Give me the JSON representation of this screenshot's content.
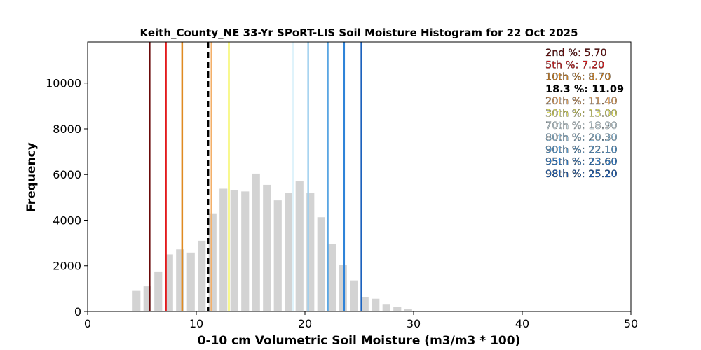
{
  "chart_data": {
    "type": "bar",
    "title": "Keith_County_NE 33-Yr SPoRT-LIS Soil Moisture Histogram for 22 Oct 2025",
    "xlabel": "0-10 cm Volumetric Soil Moisture (m3/m3 * 100)",
    "ylabel": "Frequency",
    "xlim": [
      0,
      50
    ],
    "ylim": [
      0,
      11800
    ],
    "xticks": [
      0,
      10,
      20,
      30,
      40,
      50
    ],
    "yticks": [
      0,
      2000,
      4000,
      6000,
      8000,
      10000
    ],
    "grid": false,
    "bin_width": 1,
    "bars": [
      {
        "x": 3.5,
        "y": 30
      },
      {
        "x": 4.5,
        "y": 900
      },
      {
        "x": 5.5,
        "y": 1100
      },
      {
        "x": 6.5,
        "y": 1750
      },
      {
        "x": 7.5,
        "y": 2500
      },
      {
        "x": 8.5,
        "y": 2720
      },
      {
        "x": 9.5,
        "y": 2580
      },
      {
        "x": 10.5,
        "y": 3100
      },
      {
        "x": 11.5,
        "y": 4300
      },
      {
        "x": 12.5,
        "y": 5380
      },
      {
        "x": 13.5,
        "y": 5320
      },
      {
        "x": 14.5,
        "y": 5260
      },
      {
        "x": 15.5,
        "y": 6040
      },
      {
        "x": 16.5,
        "y": 5550
      },
      {
        "x": 17.5,
        "y": 4870
      },
      {
        "x": 18.5,
        "y": 5180
      },
      {
        "x": 19.5,
        "y": 5700
      },
      {
        "x": 20.5,
        "y": 5200
      },
      {
        "x": 21.5,
        "y": 4130
      },
      {
        "x": 22.5,
        "y": 2950
      },
      {
        "x": 23.5,
        "y": 2040
      },
      {
        "x": 24.5,
        "y": 1360
      },
      {
        "x": 25.5,
        "y": 620
      },
      {
        "x": 26.5,
        "y": 560
      },
      {
        "x": 27.5,
        "y": 300
      },
      {
        "x": 28.5,
        "y": 200
      },
      {
        "x": 29.5,
        "y": 120
      }
    ],
    "bar_color": "#d3d3d3",
    "percentile_lines": [
      {
        "label": "2nd %",
        "value_text": "5.70",
        "x": 5.7,
        "color": "#6b0a0a",
        "dashed": false,
        "bold": false
      },
      {
        "label": "5th %",
        "value_text": "7.20",
        "x": 7.2,
        "color": "#e31a1c",
        "dashed": false,
        "bold": false
      },
      {
        "label": "10th %",
        "value_text": "8.70",
        "x": 8.7,
        "color": "#e08a22",
        "dashed": false,
        "bold": false
      },
      {
        "label": "18.3 %",
        "value_text": "11.09",
        "x": 11.09,
        "color": "#000000",
        "dashed": true,
        "bold": true
      },
      {
        "label": "20th %",
        "value_text": "11.40",
        "x": 11.4,
        "color": "#f4b06a",
        "dashed": false,
        "bold": false
      },
      {
        "label": "30th %",
        "value_text": "13.00",
        "x": 13.0,
        "color": "#f5f56a",
        "dashed": false,
        "bold": false
      },
      {
        "label": "70th %",
        "value_text": "18.90",
        "x": 18.9,
        "color": "#dff3fb",
        "dashed": false,
        "bold": false
      },
      {
        "label": "80th %",
        "value_text": "20.30",
        "x": 20.3,
        "color": "#9ecfee",
        "dashed": false,
        "bold": false
      },
      {
        "label": "90th %",
        "value_text": "22.10",
        "x": 22.1,
        "color": "#5aa6e3",
        "dashed": false,
        "bold": false
      },
      {
        "label": "95th %",
        "value_text": "23.60",
        "x": 23.6,
        "color": "#2f83d8",
        "dashed": false,
        "bold": false
      },
      {
        "label": "98th %",
        "value_text": "25.20",
        "x": 25.2,
        "color": "#1c62bd",
        "dashed": false,
        "bold": false
      }
    ],
    "legend_placement": "top-right"
  }
}
